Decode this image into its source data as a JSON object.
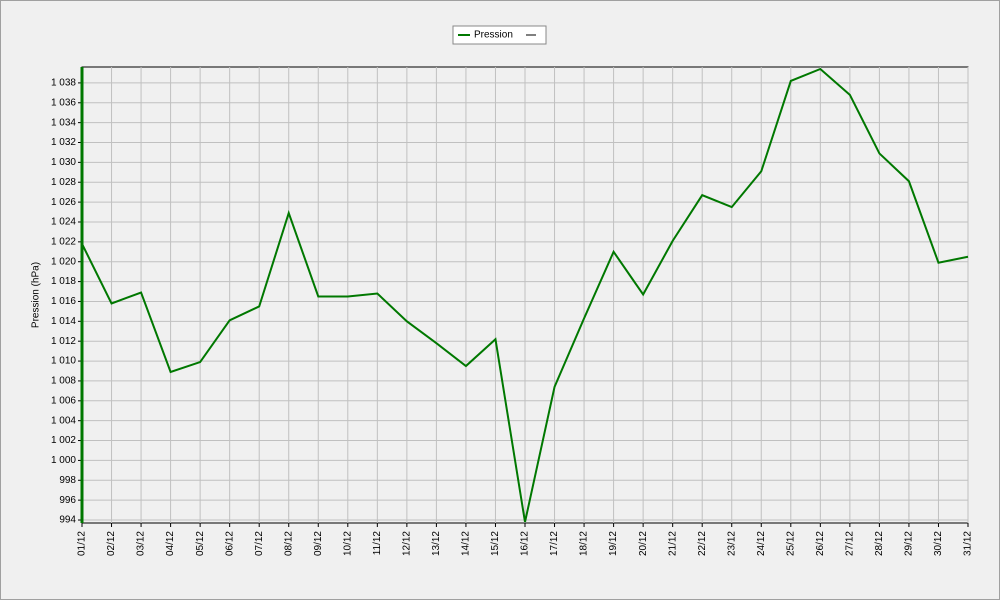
{
  "chart_data": {
    "type": "line",
    "y_label": "Pression (hPa)",
    "categories": [
      "01/12",
      "02/12",
      "03/12",
      "04/12",
      "05/12",
      "06/12",
      "07/12",
      "08/12",
      "09/12",
      "10/12",
      "11/12",
      "12/12",
      "13/12",
      "14/12",
      "15/12",
      "16/12",
      "17/12",
      "18/12",
      "19/12",
      "20/12",
      "21/12",
      "22/12",
      "23/12",
      "24/12",
      "25/12",
      "26/12",
      "27/12",
      "28/12",
      "29/12",
      "30/12",
      "31/12"
    ],
    "series": [
      {
        "name": "Pression",
        "color": "#007800",
        "values": [
          1021.8,
          1015.8,
          1016.9,
          1008.9,
          1009.9,
          1014.1,
          1015.5,
          1024.9,
          1016.5,
          1016.5,
          1016.8,
          1014.0,
          1011.8,
          1009.5,
          1012.2,
          993.8,
          1007.4,
          1014.3,
          1021.0,
          1016.7,
          1022.1,
          1026.7,
          1025.5,
          1029.1,
          1038.2,
          1039.4,
          1036.8,
          1030.9,
          1028.1,
          1019.9,
          1020.5
        ]
      }
    ],
    "ylim": [
      993.7,
      1039.6
    ],
    "yticks": [
      994,
      996,
      998,
      {
        "value": 1000,
        "label": "1 000"
      },
      {
        "value": 1002,
        "label": "1 002"
      },
      {
        "value": 1004,
        "label": "1 004"
      },
      {
        "value": 1006,
        "label": "1 006"
      },
      {
        "value": 1008,
        "label": "1 008"
      },
      {
        "value": 1010,
        "label": "1 010"
      },
      {
        "value": 1012,
        "label": "1 012"
      },
      {
        "value": 1014,
        "label": "1 014"
      },
      {
        "value": 1016,
        "label": "1 016"
      },
      {
        "value": 1018,
        "label": "1 018"
      },
      {
        "value": 1020,
        "label": "1 020"
      },
      {
        "value": 1022,
        "label": "1 022"
      },
      {
        "value": 1024,
        "label": "1 024"
      },
      {
        "value": 1026,
        "label": "1 026"
      },
      {
        "value": 1028,
        "label": "1 028"
      },
      {
        "value": 1030,
        "label": "1 030"
      },
      {
        "value": 1032,
        "label": "1 032"
      },
      {
        "value": 1034,
        "label": "1 034"
      },
      {
        "value": 1036,
        "label": "1 036"
      },
      {
        "value": 1038,
        "label": "1 038"
      }
    ],
    "grid": true
  }
}
